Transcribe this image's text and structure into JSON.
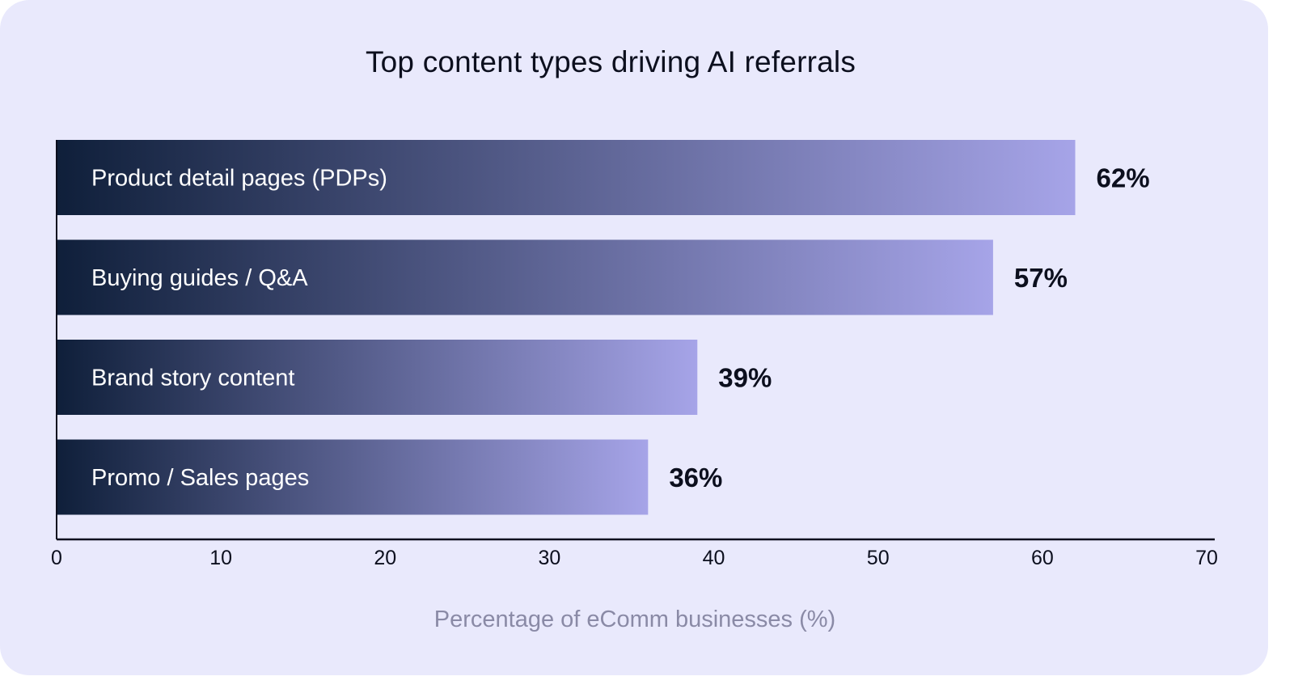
{
  "chart_data": {
    "type": "bar",
    "orientation": "horizontal",
    "title": "Top content types driving AI referrals",
    "xlabel": "Percentage of eComm businesses (%)",
    "ylabel": "",
    "categories": [
      "Product detail pages (PDPs)",
      "Buying guides / Q&A",
      "Brand story content",
      "Promo / Sales pages"
    ],
    "values": [
      62,
      57,
      39,
      36
    ],
    "data_labels": [
      "62%",
      "57%",
      "39%",
      "36%"
    ],
    "xlim": [
      0,
      70
    ],
    "xticks": [
      0,
      10,
      20,
      30,
      40,
      50,
      60,
      70
    ],
    "grid": false,
    "colors": {
      "bar_start": "#0f1f3a",
      "bar_end": "#a6a4e8",
      "background": "#e9e9fc",
      "text": "#0c0f1e"
    }
  }
}
